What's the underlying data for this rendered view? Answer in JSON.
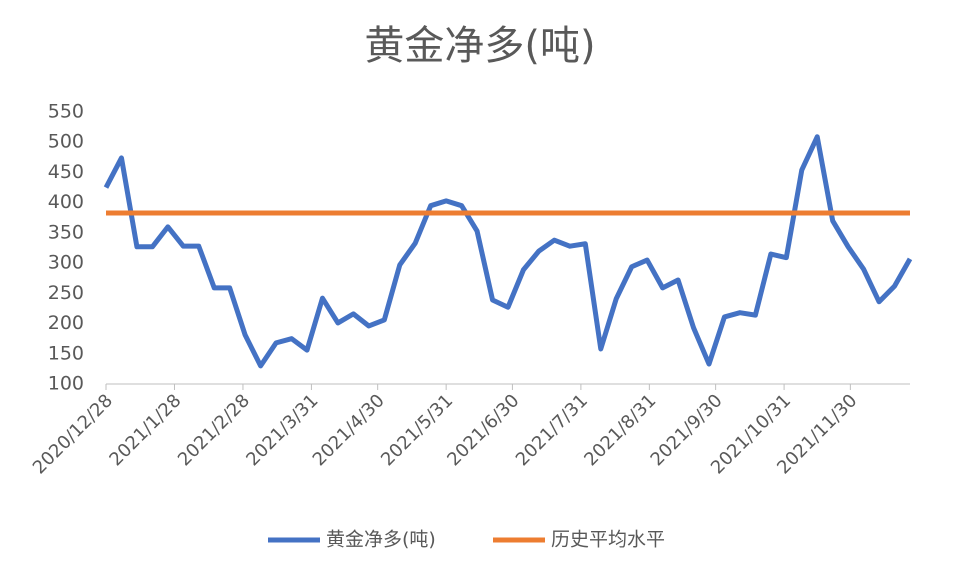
{
  "chart_data": {
    "type": "line",
    "title": "黄金净多(吨)",
    "x": [
      "2020/12/28",
      "2021/1/4",
      "2021/1/11",
      "2021/1/18",
      "2021/1/25",
      "2021/2/1",
      "2021/2/8",
      "2021/2/15",
      "2021/2/22",
      "2021/3/1",
      "2021/3/8",
      "2021/3/15",
      "2021/3/22",
      "2021/3/29",
      "2021/4/5",
      "2021/4/12",
      "2021/4/19",
      "2021/4/26",
      "2021/5/3",
      "2021/5/10",
      "2021/5/17",
      "2021/5/24",
      "2021/5/31",
      "2021/6/7",
      "2021/6/14",
      "2021/6/21",
      "2021/6/28",
      "2021/7/5",
      "2021/7/12",
      "2021/7/19",
      "2021/7/26",
      "2021/8/2",
      "2021/8/9",
      "2021/8/16",
      "2021/8/23",
      "2021/8/30",
      "2021/9/6",
      "2021/9/13",
      "2021/9/20",
      "2021/9/27",
      "2021/10/4",
      "2021/10/11",
      "2021/10/18",
      "2021/10/25",
      "2021/11/1",
      "2021/11/8",
      "2021/11/15",
      "2021/11/22",
      "2021/11/29",
      "2021/12/6",
      "2021/12/13",
      "2021/12/20",
      "2021/12/27"
    ],
    "series": [
      {
        "name": "黄金净多(吨)",
        "color": "#4472c4",
        "values": [
          425,
          474,
          327,
          327,
          360,
          328,
          328,
          259,
          259,
          181,
          130,
          168,
          175,
          156,
          242,
          201,
          216,
          196,
          206,
          297,
          333,
          395,
          403,
          395,
          353,
          239,
          227,
          289,
          320,
          338,
          328,
          332,
          158,
          241,
          294,
          305,
          259,
          272,
          193,
          133,
          211,
          218,
          214,
          315,
          309,
          454,
          509,
          370,
          327,
          290,
          236,
          262,
          307
        ]
      },
      {
        "name": "历史平均水平",
        "color": "#ed7d31",
        "values": [
          383,
          383,
          383,
          383,
          383,
          383,
          383,
          383,
          383,
          383,
          383,
          383,
          383,
          383,
          383,
          383,
          383,
          383,
          383,
          383,
          383,
          383,
          383,
          383,
          383,
          383,
          383,
          383,
          383,
          383,
          383,
          383,
          383,
          383,
          383,
          383,
          383,
          383,
          383,
          383,
          383,
          383,
          383,
          383,
          383,
          383,
          383,
          383,
          383,
          383,
          383,
          383,
          383
        ]
      }
    ],
    "xlim": [
      "2020/12/28",
      "2021/12/27"
    ],
    "xticks": [
      "2020/12/28",
      "2021/1/28",
      "2021/2/28",
      "2021/3/31",
      "2021/4/30",
      "2021/5/31",
      "2021/6/30",
      "2021/7/31",
      "2021/8/31",
      "2021/9/30",
      "2021/10/31",
      "2021/11/30"
    ],
    "ylim": [
      100,
      550
    ],
    "yticks": [
      100,
      150,
      200,
      250,
      300,
      350,
      400,
      450,
      500,
      550
    ],
    "grid": false,
    "legend": "bottom"
  }
}
